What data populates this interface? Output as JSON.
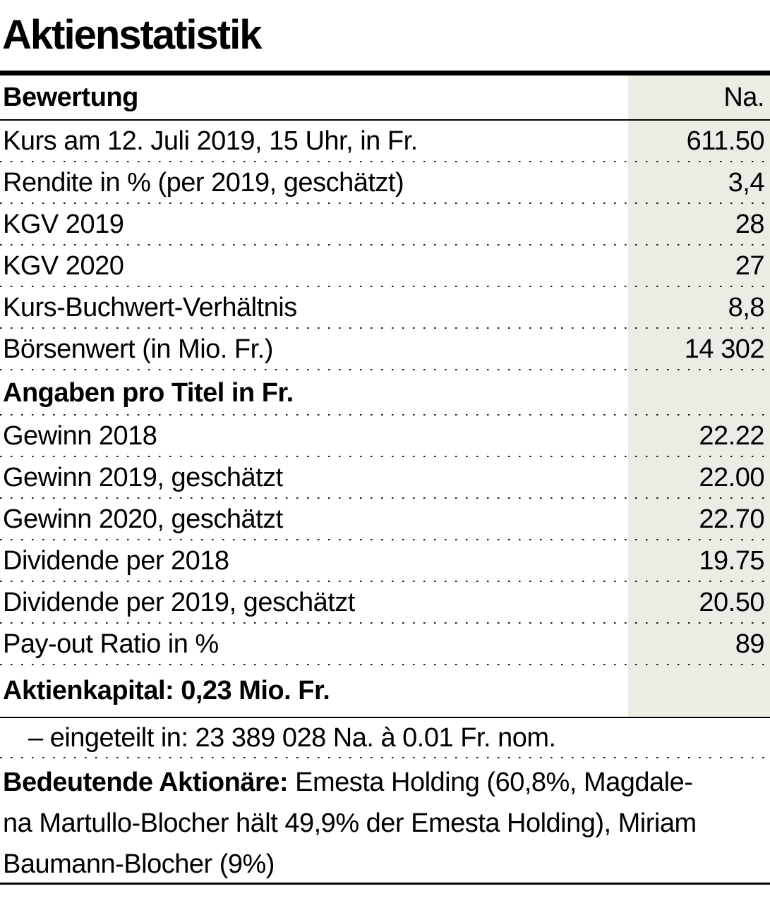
{
  "title": "Aktienstatistik",
  "colors": {
    "value_column_band": "#EDECE4",
    "text": "#000000",
    "rule": "#000000"
  },
  "table": {
    "header": {
      "label": "Bewertung",
      "value": "Na."
    },
    "sections": [
      {
        "heading": null,
        "rows": [
          {
            "label": "Kurs am 12. Juli 2019, 15 Uhr, in Fr.",
            "value": "611.50"
          },
          {
            "label": "Rendite in % (per 2019, geschätzt)",
            "value": "3,4"
          },
          {
            "label": "KGV 2019",
            "value": "28"
          },
          {
            "label": "KGV 2020",
            "value": "27"
          },
          {
            "label": "Kurs-Buchwert-Verhältnis",
            "value": "8,8"
          },
          {
            "label": "Börsenwert (in Mio. Fr.)",
            "value": "14 302"
          }
        ]
      },
      {
        "heading": "Angaben pro Titel in Fr.",
        "rows": [
          {
            "label": "Gewinn 2018",
            "value": "22.22"
          },
          {
            "label": "Gewinn 2019, geschätzt",
            "value": "22.00"
          },
          {
            "label": "Gewinn 2020, geschätzt",
            "value": "22.70"
          },
          {
            "label": "Dividende per 2018",
            "value": "19.75"
          },
          {
            "label": "Dividende per 2019, geschätzt",
            "value": "20.50"
          },
          {
            "label": "Pay-out Ratio in %",
            "value": "89"
          }
        ]
      }
    ],
    "capital_label": "Aktienkapital: 0,23 Mio. Fr.",
    "breakdown": "– eingeteilt in: 23 389 028 Na. à 0.01 Fr. nom."
  },
  "shareholders": {
    "line1_bold": "Bedeutende Aktionäre:",
    "line1_rest": " Emesta Holding (60,8%, Magdale-",
    "line2": "na Martullo-Blocher hält 49,9% der Emesta Holding), Miriam",
    "line3": "Baumann-Blocher (9%)"
  }
}
